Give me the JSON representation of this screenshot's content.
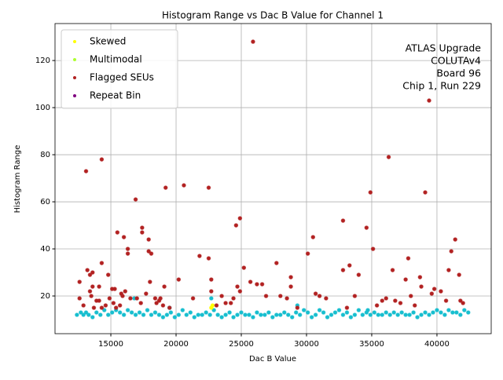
{
  "chart_data": {
    "type": "scatter",
    "title": "Histogram Range vs Dac B Value for Channel 1",
    "xlabel": "Dac B Value",
    "ylabel": "Histogram Range",
    "annotation": [
      "ATLAS Upgrade",
      "COLUTAv4",
      "Board 96",
      "Chip 1, Run 229"
    ],
    "xlim": [
      10720,
      44160
    ],
    "ylim": [
      4,
      135.7
    ],
    "xticks": [
      15000,
      20000,
      25000,
      30000,
      35000,
      40000
    ],
    "yticks": [
      20,
      40,
      60,
      80,
      100,
      120
    ],
    "grid": true,
    "legend": "upper left",
    "series": [
      {
        "color": "#17becf",
        "x": [
          12400,
          12700,
          12900,
          13100,
          13300,
          13600,
          13900,
          14200,
          14500,
          14800,
          15100,
          15400,
          15700,
          16000,
          16300,
          16600,
          16900,
          17200,
          17500,
          17800,
          18100,
          18400,
          18700,
          19000,
          19300,
          19600,
          19900,
          20200,
          20500,
          20800,
          21100,
          21400,
          21700,
          22000,
          22300,
          22600,
          22900,
          23200,
          23500,
          23800,
          24100,
          24400,
          24700,
          25000,
          25300,
          25600,
          25900,
          26200,
          26500,
          26800,
          27100,
          27400,
          27700,
          28000,
          28300,
          28600,
          28900,
          29200,
          29500,
          29800,
          30100,
          30400,
          30700,
          31000,
          31300,
          31600,
          31900,
          32200,
          32500,
          32800,
          33100,
          33400,
          33700,
          34000,
          34300,
          34600,
          34900,
          35200,
          35500,
          35800,
          36100,
          36400,
          36700,
          37000,
          37300,
          37600,
          37900,
          38200,
          38500,
          38800,
          39100,
          39400,
          39700,
          40000,
          40300,
          40600,
          40900,
          41200,
          41500,
          41800,
          42100,
          42400,
          16800,
          19500,
          22700,
          29300,
          34700
        ],
        "values": [
          12,
          13,
          12,
          13,
          12,
          11,
          13,
          12,
          14,
          12,
          13,
          14,
          13,
          12,
          14,
          13,
          12,
          13,
          12,
          14,
          12,
          13,
          12,
          11,
          12,
          13,
          11,
          12,
          14,
          12,
          13,
          11,
          12,
          12,
          13,
          12,
          14,
          12,
          11,
          12,
          13,
          11,
          12,
          13,
          12,
          12,
          11,
          13,
          12,
          12,
          13,
          11,
          12,
          12,
          13,
          12,
          11,
          13,
          12,
          14,
          13,
          11,
          12,
          14,
          13,
          11,
          12,
          13,
          14,
          12,
          13,
          11,
          12,
          14,
          12,
          13,
          12,
          13,
          12,
          12,
          13,
          12,
          13,
          12,
          13,
          12,
          12,
          13,
          11,
          12,
          13,
          12,
          13,
          14,
          13,
          12,
          14,
          13,
          13,
          12,
          14,
          13,
          19,
          15,
          19,
          16,
          14
        ]
      },
      {
        "name": "Skewed",
        "color": "#ffff00",
        "x": [
          22700,
          22800
        ],
        "values": [
          15,
          16
        ]
      },
      {
        "name": "Multimodal",
        "color": "#adff2f",
        "x": [],
        "values": []
      },
      {
        "name": "Flagged SEUs",
        "color": "#b22222",
        "x": [
          12600,
          12600,
          12900,
          13100,
          13200,
          13400,
          13400,
          13500,
          13600,
          13600,
          13700,
          13900,
          14100,
          14100,
          14300,
          14300,
          14300,
          14600,
          14800,
          14900,
          15100,
          15200,
          15300,
          15400,
          15500,
          15700,
          15800,
          15900,
          16000,
          16100,
          16300,
          16300,
          16500,
          16900,
          17000,
          17300,
          17400,
          17400,
          17700,
          17900,
          17900,
          18000,
          18100,
          18400,
          18500,
          18700,
          18800,
          19000,
          19100,
          19200,
          19500,
          20200,
          20600,
          21300,
          21800,
          22500,
          22500,
          22700,
          22700,
          23100,
          23500,
          23800,
          24200,
          24400,
          24600,
          24700,
          24900,
          24900,
          25200,
          25700,
          25900,
          26200,
          26600,
          26900,
          27700,
          28000,
          28500,
          28800,
          28800,
          29300,
          30100,
          30500,
          30700,
          31000,
          31500,
          32800,
          32800,
          33100,
          33300,
          33700,
          34000,
          34600,
          34900,
          35100,
          35400,
          35800,
          36100,
          36300,
          36600,
          36800,
          37200,
          37600,
          37800,
          38000,
          38300,
          38700,
          38800,
          39100,
          39400,
          39600,
          39800,
          40300,
          40700,
          40900,
          41100,
          41400,
          41700,
          41800,
          42000
        ],
        "values": [
          26,
          19,
          16,
          73,
          31,
          29,
          22,
          20,
          30,
          24,
          15,
          18,
          24,
          18,
          78,
          34,
          15,
          16,
          29,
          19,
          23,
          17,
          23,
          15,
          47,
          16,
          21,
          20,
          45,
          22,
          40,
          38,
          19,
          61,
          19,
          17,
          47,
          49,
          21,
          44,
          39,
          26,
          38,
          19,
          17,
          18,
          19,
          16,
          24,
          66,
          15,
          27,
          67,
          19,
          37,
          66,
          36,
          27,
          22,
          16,
          20,
          17,
          17,
          19,
          50,
          24,
          53,
          22,
          32,
          26,
          128,
          25,
          25,
          20,
          34,
          20,
          19,
          28,
          24,
          15,
          38,
          45,
          21,
          20,
          19,
          52,
          31,
          15,
          33,
          20,
          29,
          49,
          64,
          40,
          16,
          18,
          19,
          79,
          31,
          18,
          17,
          27,
          36,
          20,
          16,
          28,
          24,
          64,
          103,
          21,
          23,
          22,
          18,
          31,
          39,
          44,
          29,
          18,
          17
        ]
      },
      {
        "name": "Repeat Bin",
        "color": "#800080",
        "x": [],
        "values": []
      }
    ]
  }
}
